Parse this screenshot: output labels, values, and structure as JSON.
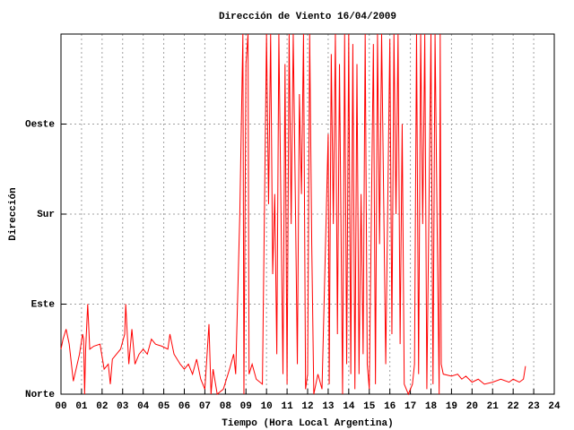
{
  "chart_data": {
    "type": "line",
    "title": "Dirección de Viento 16/04/2009",
    "x_label": "Tiempo (Hora Local Argentina)",
    "y_label": "Dirección",
    "color": "#ff0000",
    "grid": true,
    "xlim": [
      0,
      24
    ],
    "xticks": [
      {
        "value": 0,
        "label": "00"
      },
      {
        "value": 1,
        "label": "01"
      },
      {
        "value": 2,
        "label": "02"
      },
      {
        "value": 3,
        "label": "03"
      },
      {
        "value": 4,
        "label": "04"
      },
      {
        "value": 5,
        "label": "05"
      },
      {
        "value": 6,
        "label": "06"
      },
      {
        "value": 7,
        "label": "07"
      },
      {
        "value": 8,
        "label": "08"
      },
      {
        "value": 9,
        "label": "09"
      },
      10,
      11,
      12,
      13,
      14,
      15,
      16,
      17,
      18,
      19,
      20,
      21,
      22,
      23,
      24
    ],
    "ylim": [
      0,
      360
    ],
    "yticks": [
      {
        "value": 0,
        "label": "Norte"
      },
      {
        "value": 90,
        "label": "Este"
      },
      {
        "value": 180,
        "label": "Sur"
      },
      {
        "value": 270,
        "label": "Oeste"
      }
    ],
    "x": [
      0.0,
      0.1,
      0.25,
      0.4,
      0.6,
      0.9,
      1.05,
      1.1,
      1.15,
      1.2,
      1.3,
      1.4,
      1.6,
      1.9,
      2.1,
      2.3,
      2.4,
      2.5,
      2.7,
      2.9,
      3.1,
      3.15,
      3.3,
      3.45,
      3.6,
      3.8,
      4.0,
      4.2,
      4.4,
      4.6,
      4.9,
      5.2,
      5.3,
      5.5,
      5.8,
      6.0,
      6.2,
      6.4,
      6.6,
      6.8,
      7.0,
      7.2,
      7.3,
      7.4,
      7.6,
      7.9,
      8.2,
      8.4,
      8.5,
      8.7,
      8.85,
      8.9,
      9.0,
      9.1,
      9.15,
      9.3,
      9.5,
      9.8,
      10.0,
      10.1,
      10.2,
      10.3,
      10.4,
      10.5,
      10.6,
      10.8,
      10.9,
      11.0,
      11.1,
      11.2,
      11.3,
      11.4,
      11.5,
      11.6,
      11.7,
      11.8,
      11.9,
      12.0,
      12.1,
      12.2,
      12.3,
      12.5,
      12.7,
      13.0,
      13.05,
      13.15,
      13.25,
      13.35,
      13.45,
      13.55,
      13.7,
      13.8,
      13.9,
      14.0,
      14.1,
      14.2,
      14.3,
      14.4,
      14.5,
      14.6,
      14.7,
      14.8,
      14.9,
      15.0,
      15.2,
      15.3,
      15.4,
      15.5,
      15.6,
      15.8,
      16.0,
      16.1,
      16.2,
      16.3,
      16.4,
      16.5,
      16.6,
      16.7,
      16.9,
      17.1,
      17.2,
      17.3,
      17.4,
      17.5,
      17.6,
      17.7,
      17.8,
      17.9,
      18.0,
      18.1,
      18.2,
      18.3,
      18.4,
      18.45,
      18.5,
      18.6,
      19.0,
      19.3,
      19.5,
      19.7,
      20.0,
      20.3,
      20.6,
      21.0,
      21.4,
      21.8,
      22.0,
      22.3,
      22.5,
      22.6
    ],
    "values": [
      45,
      55,
      65,
      50,
      13,
      40,
      60,
      55,
      0,
      45,
      90,
      45,
      48,
      50,
      25,
      30,
      10,
      35,
      40,
      45,
      60,
      90,
      30,
      65,
      30,
      40,
      45,
      40,
      55,
      50,
      48,
      45,
      60,
      40,
      30,
      25,
      30,
      20,
      35,
      15,
      5,
      70,
      0,
      25,
      0,
      5,
      25,
      40,
      20,
      180,
      360,
      0,
      330,
      360,
      20,
      30,
      15,
      10,
      360,
      190,
      360,
      120,
      200,
      40,
      360,
      20,
      330,
      10,
      360,
      170,
      360,
      200,
      30,
      300,
      200,
      360,
      5,
      20,
      360,
      150,
      0,
      20,
      5,
      260,
      10,
      340,
      170,
      360,
      60,
      330,
      0,
      360,
      30,
      360,
      20,
      350,
      5,
      330,
      20,
      200,
      40,
      360,
      30,
      5,
      350,
      10,
      360,
      150,
      360,
      30,
      355,
      60,
      360,
      180,
      360,
      50,
      270,
      10,
      0,
      10,
      30,
      360,
      20,
      360,
      170,
      360,
      5,
      180,
      360,
      10,
      360,
      170,
      0,
      360,
      30,
      20,
      18,
      20,
      15,
      18,
      12,
      15,
      10,
      12,
      15,
      12,
      15,
      12,
      15,
      28
    ]
  }
}
